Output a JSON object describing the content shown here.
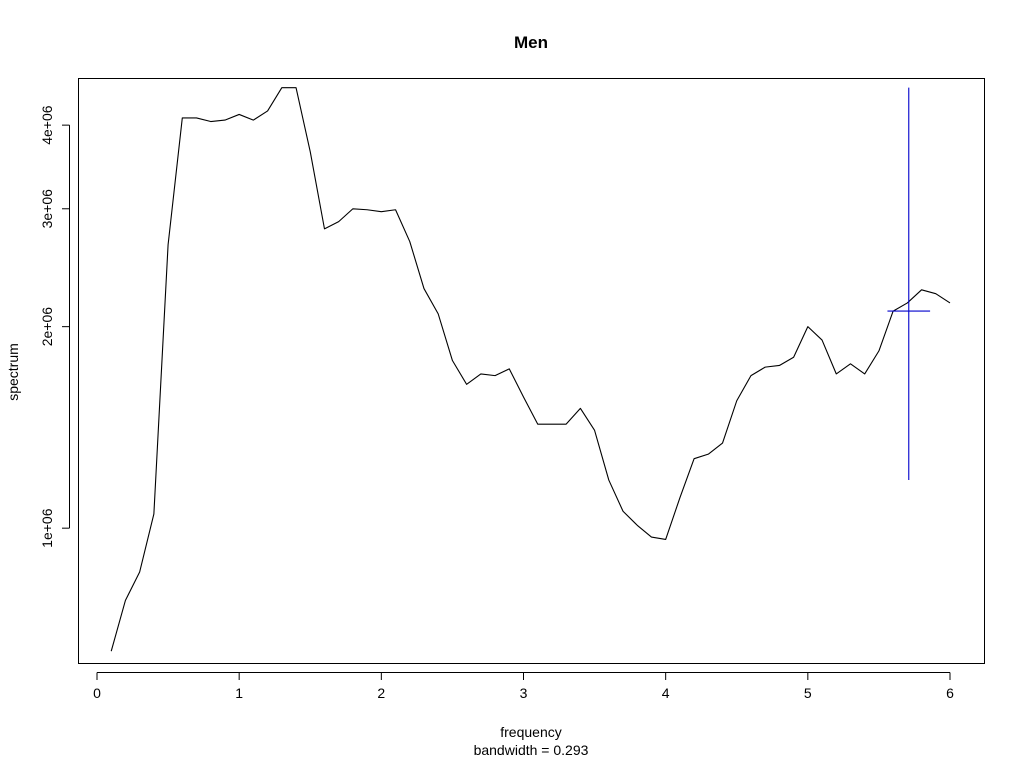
{
  "chart_data": {
    "type": "line",
    "title": "Men",
    "xlabel": "frequency",
    "sublabel": "bandwidth = 0.293",
    "ylabel": "spectrum",
    "ylog": true,
    "xlim": [
      0,
      6
    ],
    "ylim": [
      630000,
      4600000
    ],
    "xticks": [
      {
        "value": 0,
        "label": "0"
      },
      {
        "value": 1,
        "label": "1"
      },
      {
        "value": 2,
        "label": "2"
      },
      {
        "value": 3,
        "label": "3"
      },
      {
        "value": 4,
        "label": "4"
      },
      {
        "value": 5,
        "label": "5"
      },
      {
        "value": 6,
        "label": "6"
      }
    ],
    "yticks": [
      {
        "value": 1000000,
        "label": "1e+06"
      },
      {
        "value": 2000000,
        "label": "2e+06"
      },
      {
        "value": 3000000,
        "label": "3e+06"
      },
      {
        "value": 4000000,
        "label": "4e+06"
      }
    ],
    "series": [
      {
        "color": "#000000",
        "x": [
          0.1,
          0.2,
          0.3,
          0.4,
          0.5,
          0.6,
          0.7,
          0.8,
          0.9,
          1.0,
          1.1,
          1.2,
          1.3,
          1.4,
          1.5,
          1.6,
          1.7,
          1.8,
          1.9,
          2.0,
          2.1,
          2.2,
          2.3,
          2.4,
          2.5,
          2.6,
          2.7,
          2.8,
          2.9,
          3.0,
          3.1,
          3.2,
          3.3,
          3.4,
          3.5,
          3.6,
          3.7,
          3.8,
          3.9,
          4.0,
          4.1,
          4.2,
          4.3,
          4.4,
          4.5,
          4.6,
          4.7,
          4.8,
          4.9,
          5.0,
          5.1,
          5.2,
          5.3,
          5.4,
          5.5,
          5.6,
          5.7,
          5.8,
          5.9,
          6.0
        ],
        "y": [
          655000,
          780000,
          860000,
          1050000,
          2650000,
          4100000,
          4100000,
          4050000,
          4070000,
          4150000,
          4070000,
          4200000,
          4550000,
          4550000,
          3650000,
          2800000,
          2870000,
          3000000,
          2990000,
          2970000,
          2990000,
          2680000,
          2280000,
          2090000,
          1780000,
          1640000,
          1700000,
          1690000,
          1730000,
          1570000,
          1430000,
          1430000,
          1430000,
          1510000,
          1400000,
          1180000,
          1060000,
          1010000,
          970000,
          962000,
          1110000,
          1270000,
          1290000,
          1340000,
          1550000,
          1690000,
          1740000,
          1750000,
          1800000,
          2000000,
          1910000,
          1700000,
          1760000,
          1700000,
          1840000,
          2110000,
          2170000,
          2270000,
          2240000,
          2170000
        ]
      }
    ],
    "ci_bar": {
      "color": "#0000cc",
      "x": 5.71,
      "y": 2110000,
      "y_low": 1180000,
      "y_high": 4550000,
      "x_low": 5.56,
      "x_high": 5.86
    }
  }
}
